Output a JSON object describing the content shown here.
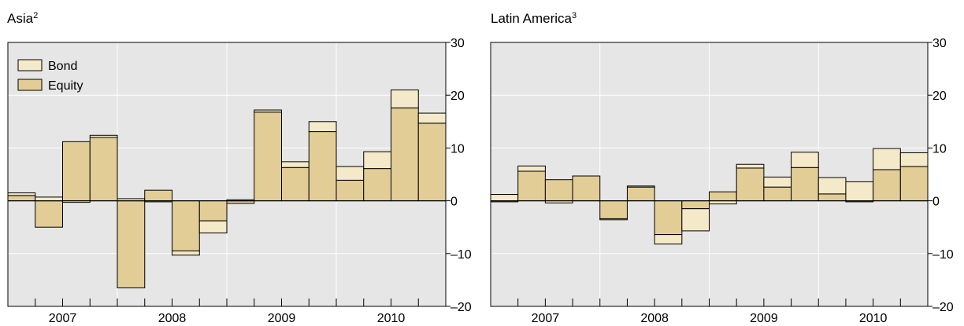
{
  "colors": {
    "plot_bg": "#e6e6e6",
    "grid": "#ffffff",
    "bond": "#f4e9c8",
    "equity": "#e2cd96",
    "outline": "#000000"
  },
  "chart_data": [
    {
      "id": "asia",
      "type": "bar",
      "stacked": true,
      "title": "Asia",
      "title_sup": "2",
      "ylim": [
        -20,
        30
      ],
      "yticks": [
        30,
        20,
        10,
        0,
        -10,
        -20
      ],
      "ytick_labels": [
        "30",
        "20",
        "10",
        "0",
        "–10",
        "–20"
      ],
      "x_period_labels": [
        "2007",
        "2008",
        "2009",
        "2010"
      ],
      "legend": {
        "position": "top-left",
        "entries": [
          "Bond",
          "Equity"
        ]
      },
      "grid": true,
      "quarters": [
        "2007Q1",
        "2007Q2",
        "2007Q3",
        "2007Q4",
        "2008Q1",
        "2008Q2",
        "2008Q3",
        "2008Q4",
        "2009Q1",
        "2009Q2",
        "2009Q3",
        "2009Q4",
        "2010Q1",
        "2010Q2",
        "2010Q3",
        "2010Q4"
      ],
      "series": [
        {
          "name": "Equity",
          "values": [
            1.0,
            -5.0,
            11.2,
            12.0,
            -16.5,
            2.0,
            -9.5,
            -3.8,
            -0.5,
            16.8,
            6.3,
            13.1,
            3.9,
            6.1,
            17.6,
            14.7
          ]
        },
        {
          "name": "Bond",
          "values": [
            0.5,
            0.7,
            -0.3,
            0.4,
            0.4,
            -0.2,
            -0.8,
            -2.3,
            0.2,
            0.4,
            1.1,
            1.9,
            2.6,
            3.2,
            3.4,
            1.9
          ]
        }
      ]
    },
    {
      "id": "latam",
      "type": "bar",
      "stacked": true,
      "title": "Latin America",
      "title_sup": "3",
      "ylim": [
        -20,
        30
      ],
      "yticks": [
        30,
        20,
        10,
        0,
        -10,
        -20
      ],
      "ytick_labels": [
        "30",
        "20",
        "10",
        "0",
        "–10",
        "–20"
      ],
      "x_period_labels": [
        "2007",
        "2008",
        "2009",
        "2010"
      ],
      "grid": true,
      "quarters": [
        "2007Q1",
        "2007Q2",
        "2007Q3",
        "2007Q4",
        "2008Q1",
        "2008Q2",
        "2008Q3",
        "2008Q4",
        "2009Q1",
        "2009Q2",
        "2009Q3",
        "2009Q4",
        "2010Q1",
        "2010Q2",
        "2010Q3",
        "2010Q4"
      ],
      "series": [
        {
          "name": "Equity",
          "values": [
            -0.2,
            5.6,
            4.0,
            4.7,
            -3.4,
            2.6,
            -6.4,
            -1.5,
            1.7,
            6.2,
            2.6,
            6.3,
            1.3,
            -0.2,
            5.9,
            6.5
          ]
        },
        {
          "name": "Bond",
          "values": [
            1.2,
            1.0,
            -0.4,
            0.0,
            -0.2,
            0.2,
            -1.8,
            -4.2,
            -0.6,
            0.7,
            1.9,
            2.9,
            3.1,
            3.6,
            4.0,
            2.6
          ]
        }
      ]
    }
  ]
}
